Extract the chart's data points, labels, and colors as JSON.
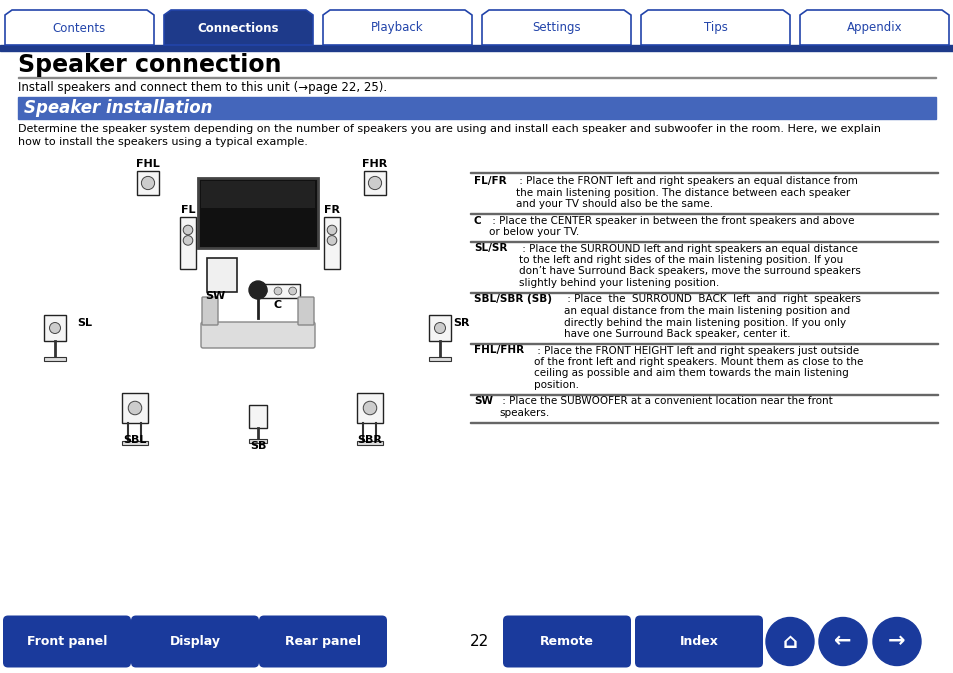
{
  "bg_color": "#ffffff",
  "tab_items": [
    "Contents",
    "Connections",
    "Playback",
    "Settings",
    "Tips",
    "Appendix"
  ],
  "tab_active": 1,
  "tab_color_active": "#1e3a8a",
  "tab_color_inactive": "#ffffff",
  "tab_text_color_active": "#ffffff",
  "tab_text_color_inactive": "#2244aa",
  "tab_border_color": "#2244aa",
  "header_line_color": "#1e3a8a",
  "title": "Speaker connection",
  "subtitle": "Install speakers and connect them to this unit (→page 22, 25).",
  "section_title": "Speaker installation",
  "section_bg": "#4466bb",
  "section_text_color": "#ffffff",
  "body_text1": "Determine the speaker system depending on the number of speakers you are using and install each speaker and subwoofer in the room. Here, we explain",
  "body_text2": "how to install the speakers using a typical example.",
  "page_number": "22",
  "bottom_buttons": [
    "Front panel",
    "Display",
    "Rear panel",
    "Remote",
    "Index"
  ],
  "bottom_btn_color": "#1a3a9c",
  "desc_entries": [
    {
      "label": "FL/FR",
      "colon": " : ",
      "lines": [
        "Place the FRONT left and right speakers an equal distance from",
        "the main listening position. The distance between each speaker",
        "and your TV should also be the same."
      ],
      "indent": 42
    },
    {
      "label": "C",
      "colon": " : ",
      "lines": [
        "Place the CENTER speaker in between the front speakers and above",
        "or below your TV."
      ],
      "indent": 15
    },
    {
      "label": "SL/SR",
      "colon": " : ",
      "lines": [
        "Place the SURROUND left and right speakers an equal distance",
        "to the left and right sides of the main listening position. If you",
        "don’t have Surround Back speakers, move the surround speakers",
        "slightly behind your listening position."
      ],
      "indent": 45
    },
    {
      "label": "SBL/SBR (SB)",
      "colon": " : ",
      "lines": [
        "Place  the  SURROUND  BACK  left  and  right  speakers",
        "an equal distance from the main listening position and",
        "directly behind the main listening position. If you only",
        "have one Surround Back speaker, center it."
      ],
      "indent": 90
    },
    {
      "label": "FHL/FHR",
      "colon": " : ",
      "lines": [
        "Place the FRONT HEIGHT left and right speakers just outside",
        "of the front left and right speakers. Mount them as close to the",
        "ceiling as possible and aim them towards the main listening",
        "position."
      ],
      "indent": 60
    },
    {
      "label": "SW",
      "colon": " : ",
      "lines": [
        "Place the SUBWOOFER at a convenient location near the front",
        "speakers."
      ],
      "indent": 25
    }
  ]
}
